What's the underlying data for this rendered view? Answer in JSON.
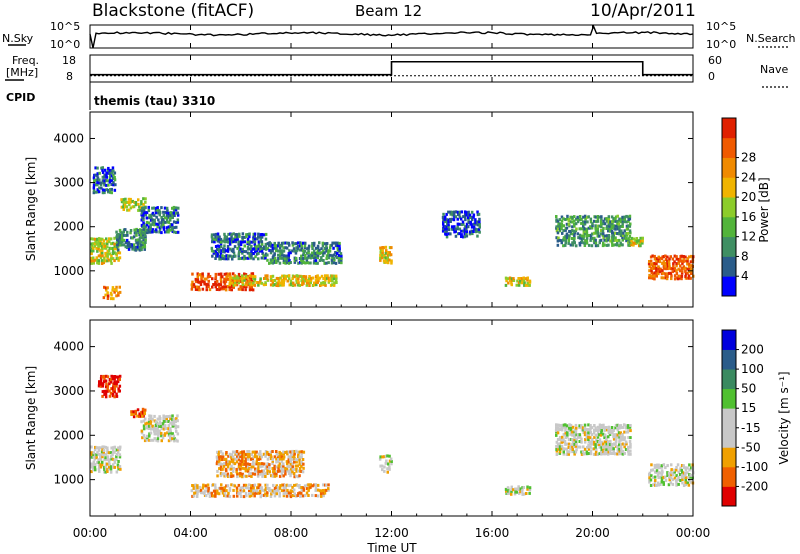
{
  "header": {
    "radar": "Blackstone (fitACF)",
    "beam": "Beam 12",
    "date": "10/Apr/2011"
  },
  "noise_panel": {
    "left_label": "N.Sky",
    "right_label": "N.Search",
    "left_ticks": [
      "10^5",
      "10^0"
    ],
    "right_ticks": [
      "10^5",
      "10^0"
    ]
  },
  "freq_panel": {
    "left_label_1": "Freq.",
    "left_label_2": "[MHz]",
    "right_label": "Nave",
    "left_ticks": [
      "18",
      "8"
    ],
    "right_ticks": [
      "60",
      "0"
    ],
    "cpid_label": "CPID",
    "cpid_value": "themis (tau) 3310"
  },
  "time_axis": {
    "label": "Time UT",
    "ticks": [
      "00:00",
      "04:00",
      "08:00",
      "12:00",
      "16:00",
      "20:00",
      "00:00"
    ]
  },
  "colors": {
    "power": [
      "#0000ff",
      "#2a5c8a",
      "#3f8f63",
      "#52b43a",
      "#8ccc2a",
      "#f0b400",
      "#f08a00",
      "#f05a00",
      "#e02000"
    ],
    "velocity": [
      "#e00000",
      "#f06000",
      "#f0a000",
      "#c8c8c8",
      "#c8c8c8",
      "#50c030",
      "#3a8a60",
      "#2a5c8a",
      "#0000dd"
    ]
  },
  "chart_data": [
    {
      "type": "heatmap",
      "panel": "power",
      "title": "",
      "xlabel": "Time UT",
      "ylabel": "Slant Range [km]",
      "xlim": [
        0,
        24
      ],
      "ylim": [
        180,
        4600
      ],
      "yticks": [
        1000,
        2000,
        3000,
        4000
      ],
      "colorbar": {
        "label": "Power [dB]",
        "range": [
          0,
          32
        ],
        "ticks": [
          "4",
          "8",
          "12",
          "16",
          "20",
          "24",
          "28"
        ]
      },
      "regions": [
        {
          "t": [
            0.0,
            1.2
          ],
          "r": [
            1200,
            1800
          ],
          "level": 0.55
        },
        {
          "t": [
            0.1,
            1.0
          ],
          "r": [
            2800,
            3400
          ],
          "level": 0.2
        },
        {
          "t": [
            1.0,
            2.2
          ],
          "r": [
            1500,
            2000
          ],
          "level": 0.25
        },
        {
          "t": [
            1.2,
            2.2
          ],
          "r": [
            2400,
            2700
          ],
          "level": 0.5
        },
        {
          "t": [
            2.0,
            3.5
          ],
          "r": [
            1900,
            2500
          ],
          "level": 0.2
        },
        {
          "t": [
            0.5,
            1.2
          ],
          "r": [
            400,
            700
          ],
          "level": 0.75
        },
        {
          "t": [
            4.0,
            6.5
          ],
          "r": [
            600,
            1000
          ],
          "level": 0.9
        },
        {
          "t": [
            5.5,
            9.8
          ],
          "r": [
            700,
            950
          ],
          "level": 0.6
        },
        {
          "t": [
            4.8,
            7.0
          ],
          "r": [
            1300,
            1900
          ],
          "level": 0.2
        },
        {
          "t": [
            7.0,
            10.0
          ],
          "r": [
            1200,
            1700
          ],
          "level": 0.25
        },
        {
          "t": [
            11.5,
            12.0
          ],
          "r": [
            1200,
            1600
          ],
          "level": 0.6
        },
        {
          "t": [
            14.0,
            15.5
          ],
          "r": [
            1800,
            2400
          ],
          "level": 0.15
        },
        {
          "t": [
            16.5,
            17.5
          ],
          "r": [
            700,
            900
          ],
          "level": 0.55
        },
        {
          "t": [
            18.5,
            21.5
          ],
          "r": [
            1600,
            2300
          ],
          "level": 0.3
        },
        {
          "t": [
            21.5,
            22.0
          ],
          "r": [
            1600,
            1800
          ],
          "level": 0.55
        },
        {
          "t": [
            22.2,
            24.0
          ],
          "r": [
            850,
            1400
          ],
          "level": 0.85
        }
      ]
    },
    {
      "type": "heatmap",
      "panel": "velocity",
      "title": "",
      "xlabel": "Time UT",
      "ylabel": "Slant Range [km]",
      "xlim": [
        0,
        24
      ],
      "ylim": [
        180,
        4600
      ],
      "yticks": [
        1000,
        2000,
        3000,
        4000
      ],
      "colorbar": {
        "label": "Velocity [m s⁻¹]",
        "ticks": [
          "200",
          "100",
          "50",
          "15",
          "-15",
          "-50",
          "-100",
          "-200"
        ]
      },
      "regions": [
        {
          "t": [
            0.0,
            1.2
          ],
          "r": [
            1200,
            1800
          ],
          "level": 0.45
        },
        {
          "t": [
            0.3,
            1.2
          ],
          "r": [
            2900,
            3400
          ],
          "level": 0.05
        },
        {
          "t": [
            1.6,
            2.2
          ],
          "r": [
            2450,
            2650
          ],
          "level": 0.15
        },
        {
          "t": [
            2.0,
            3.5
          ],
          "r": [
            1900,
            2500
          ],
          "level": 0.45
        },
        {
          "t": [
            4.0,
            9.5
          ],
          "r": [
            650,
            950
          ],
          "level": 0.3
        },
        {
          "t": [
            5.0,
            8.5
          ],
          "r": [
            1100,
            1700
          ],
          "level": 0.3
        },
        {
          "t": [
            11.5,
            12.0
          ],
          "r": [
            1200,
            1600
          ],
          "level": 0.45
        },
        {
          "t": [
            16.5,
            17.5
          ],
          "r": [
            700,
            900
          ],
          "level": 0.45
        },
        {
          "t": [
            18.5,
            21.5
          ],
          "r": [
            1600,
            2300
          ],
          "level": 0.45
        },
        {
          "t": [
            22.2,
            24.0
          ],
          "r": [
            900,
            1400
          ],
          "level": 0.45
        }
      ]
    }
  ]
}
